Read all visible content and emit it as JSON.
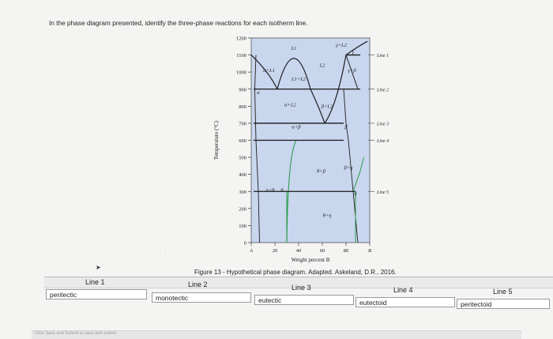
{
  "question": "In the phase diagram presented, identify the three-phase reactions for each isotherm line.",
  "caption": "Figure 13 - Hypothetical phase diagram. Adapted. Askeland, D.R., 2016.",
  "footer_text": "Click Save and Submit to save and submit.",
  "colors": {
    "region_fill": "#c8d6ee",
    "liquid_curve": "#1f1f1f",
    "isotherm": "#1a1a1a",
    "solvus": "#2f9a4c",
    "answer_border": "#9a9a9a"
  },
  "chart_data": {
    "type": "phase-diagram",
    "title": "",
    "xlabel": "Weight percent B",
    "ylabel": "Temperature (°C)",
    "x_ticks": [
      "A",
      "20",
      "40",
      "60",
      "80",
      "B"
    ],
    "y_ticks": [
      "0",
      "100",
      "200",
      "300",
      "400",
      "500",
      "600",
      "700",
      "800",
      "900",
      "1000",
      "1100",
      "1200"
    ],
    "ylim": [
      0,
      1200
    ],
    "regions": [
      {
        "label": "L1",
        "x": 36,
        "y": 1130
      },
      {
        "label": "α+L1",
        "x": 15,
        "y": 1000
      },
      {
        "label": "L1+L2",
        "x": 40,
        "y": 950
      },
      {
        "label": "L2",
        "x": 60,
        "y": 1030
      },
      {
        "label": "γ+L2",
        "x": 76,
        "y": 1150
      },
      {
        "label": "γ",
        "x": 86,
        "y": 1110
      },
      {
        "label": "γ+β",
        "x": 85,
        "y": 1000
      },
      {
        "label": "α",
        "x": 6,
        "y": 870
      },
      {
        "label": "α+L2",
        "x": 33,
        "y": 800
      },
      {
        "label": "β+L2",
        "x": 64,
        "y": 790
      },
      {
        "label": "β",
        "x": 80,
        "y": 670
      },
      {
        "label": "α+β",
        "x": 38,
        "y": 670
      },
      {
        "label": "θ+β",
        "x": 59,
        "y": 410
      },
      {
        "label": "β+η",
        "x": 82,
        "y": 430
      },
      {
        "label": "α+θ",
        "x": 16,
        "y": 300
      },
      {
        "label": "θ",
        "x": 26,
        "y": 300
      },
      {
        "label": "θ+η",
        "x": 64,
        "y": 150
      },
      {
        "label": "η",
        "x": 88,
        "y": 280
      }
    ],
    "isotherms": [
      {
        "label": "Line 1",
        "temperature": 1100,
        "x_range": [
          80,
          92
        ]
      },
      {
        "label": "Line 2",
        "temperature": 900,
        "x_range": [
          2,
          92
        ]
      },
      {
        "label": "Line 3",
        "temperature": 700,
        "x_range": [
          2,
          78
        ]
      },
      {
        "label": "Line 4",
        "temperature": 600,
        "x_range": [
          2,
          78
        ]
      },
      {
        "label": "Line 5",
        "temperature": 300,
        "x_range": [
          2,
          88
        ]
      }
    ]
  },
  "answers": [
    {
      "line": "Line 1",
      "value": "peritectic"
    },
    {
      "line": "Line 2",
      "value": "monotectic"
    },
    {
      "line": "Line 3",
      "value": "eutectic"
    },
    {
      "line": "Line 4",
      "value": "eutectoid"
    },
    {
      "line": "Line 5",
      "value": "peritectoid"
    }
  ]
}
